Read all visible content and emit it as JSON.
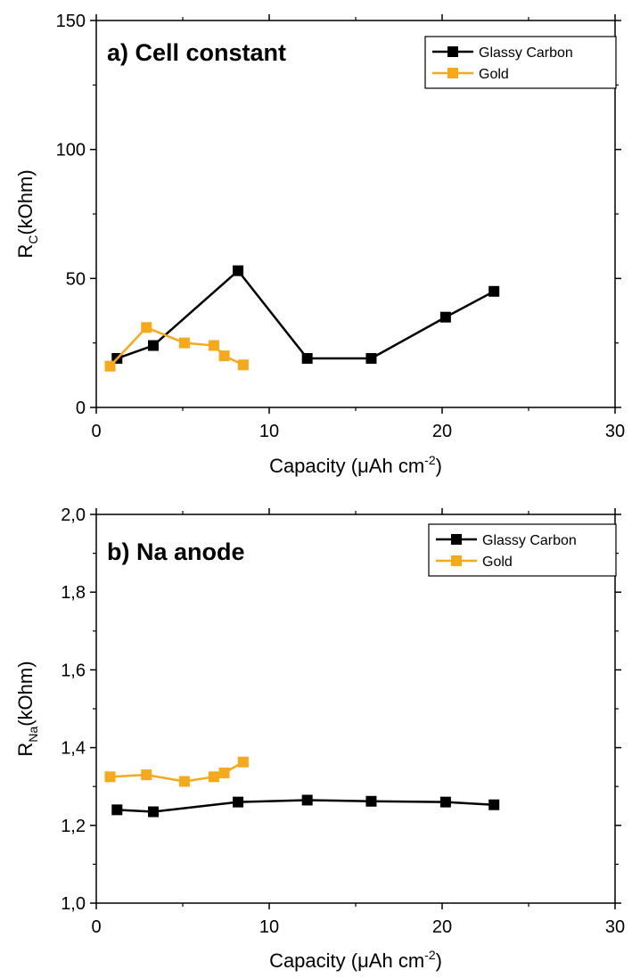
{
  "figure": {
    "panels": [
      {
        "panel_title": "a) Cell constant",
        "xlabel_main": "Capacity (",
        "xlabel_mu": "μ",
        "xlabel_unit": "Ah cm",
        "xlabel_sup": "-2",
        "xlabel_close": ")",
        "ylabel_main": "R",
        "ylabel_sub": "C",
        "ylabel_unit": "(kOhm)",
        "legend": [
          "Glassy Carbon",
          "Gold"
        ]
      },
      {
        "panel_title": "b) Na anode",
        "xlabel_main": "Capacity (",
        "xlabel_mu": "μ",
        "xlabel_unit": "Ah cm",
        "xlabel_sup": "-2",
        "xlabel_close": ")",
        "ylabel_main": "R",
        "ylabel_sub": "Na",
        "ylabel_unit": "(kOhm)",
        "legend": [
          "Glassy Carbon",
          "Gold"
        ]
      }
    ]
  },
  "chart_data": [
    {
      "type": "line",
      "title": "a) Cell constant",
      "xlabel": "Capacity (μAh cm-2)",
      "ylabel": "RC(kOhm)",
      "xlim": [
        0,
        30
      ],
      "ylim": [
        0,
        150
      ],
      "xticks": [
        0,
        10,
        20,
        30
      ],
      "yticks": [
        0,
        50,
        100,
        150
      ],
      "xtick_labels": [
        "0",
        "10",
        "20",
        "30"
      ],
      "ytick_labels": [
        "0",
        "50",
        "100",
        "150"
      ],
      "grid": false,
      "legend_position": "top-right",
      "series": [
        {
          "name": "Glassy Carbon",
          "color": "#000000",
          "marker": "square",
          "x": [
            1.2,
            3.3,
            8.2,
            12.2,
            15.9,
            20.2,
            23.0
          ],
          "y": [
            19,
            24,
            53,
            19,
            19,
            35,
            45
          ]
        },
        {
          "name": "Gold",
          "color": "#f5a91b",
          "marker": "square",
          "x": [
            0.8,
            2.9,
            5.1,
            6.8,
            7.4,
            8.5
          ],
          "y": [
            16,
            31,
            25,
            24,
            20,
            16.5
          ]
        }
      ]
    },
    {
      "type": "line",
      "title": "b) Na anode",
      "xlabel": "Capacity (μAh cm-2)",
      "ylabel": "RNa(kOhm)",
      "xlim": [
        0,
        30
      ],
      "ylim": [
        1.0,
        2.0
      ],
      "xticks": [
        0,
        10,
        20,
        30
      ],
      "yticks": [
        1.0,
        1.2,
        1.4,
        1.6,
        1.8,
        2.0
      ],
      "xtick_labels": [
        "0",
        "10",
        "20",
        "30"
      ],
      "ytick_labels": [
        "1,0",
        "1,2",
        "1,4",
        "1,6",
        "1,8",
        "2,0"
      ],
      "grid": false,
      "legend_position": "top-right",
      "series": [
        {
          "name": "Glassy Carbon",
          "color": "#000000",
          "marker": "square",
          "x": [
            1.2,
            3.3,
            8.2,
            12.2,
            15.9,
            20.2,
            23.0
          ],
          "y": [
            1.24,
            1.235,
            1.26,
            1.265,
            1.262,
            1.26,
            1.253
          ]
        },
        {
          "name": "Gold",
          "color": "#f5a91b",
          "marker": "square",
          "x": [
            0.8,
            2.9,
            5.1,
            6.8,
            7.4,
            8.5
          ],
          "y": [
            1.325,
            1.33,
            1.313,
            1.325,
            1.335,
            1.363
          ]
        }
      ]
    }
  ]
}
